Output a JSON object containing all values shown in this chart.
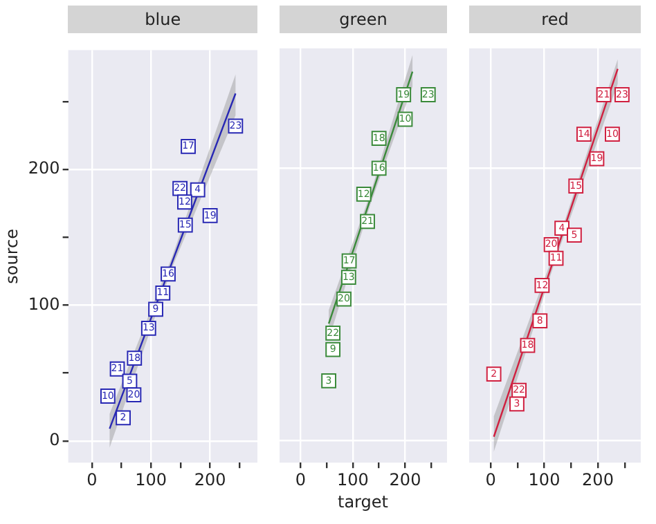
{
  "chart_data": [
    {
      "type": "scatter",
      "title": "blue",
      "ylabel": "source",
      "xlim": [
        -40,
        280
      ],
      "ylim": [
        -16,
        288
      ],
      "xticks": [
        0,
        {
          "value": 50,
          "label": null
        },
        100,
        {
          "value": 150,
          "label": null
        },
        200,
        {
          "value": 250,
          "label": null
        }
      ],
      "yticks": [
        0,
        {
          "value": 50,
          "label": null
        },
        100,
        {
          "value": 150,
          "label": null
        },
        200,
        {
          "value": 250,
          "label": null
        }
      ],
      "grid": true,
      "legend": false,
      "series": [
        {
          "color": "#2828b4",
          "x": [
            243,
            163,
            149,
            179,
            157,
            200,
            158,
            129,
            120,
            108,
            96,
            43,
            72,
            64,
            27,
            71,
            53
          ],
          "values": [
            232,
            217,
            186,
            185,
            176,
            166,
            159,
            123,
            109,
            97,
            83,
            53,
            61,
            44,
            33,
            34,
            17
          ]
        },
        {
          "type": "line",
          "color": "#2828b4",
          "x": [
            30,
            136,
            243
          ],
          "values": [
            9,
            132,
            256
          ],
          "lower": [
            -5,
            128,
            240
          ],
          "upper": [
            20,
            136,
            270
          ]
        }
      ],
      "annotations": [
        {
          "text": "23",
          "x": 243,
          "y": 232
        },
        {
          "text": "17",
          "x": 163,
          "y": 217
        },
        {
          "text": "22",
          "x": 149,
          "y": 186
        },
        {
          "text": "4",
          "x": 179,
          "y": 185
        },
        {
          "text": "12",
          "x": 157,
          "y": 176
        },
        {
          "text": "19",
          "x": 200,
          "y": 166
        },
        {
          "text": "15",
          "x": 158,
          "y": 159
        },
        {
          "text": "16",
          "x": 129,
          "y": 123
        },
        {
          "text": "11",
          "x": 120,
          "y": 109
        },
        {
          "text": "9",
          "x": 108,
          "y": 97
        },
        {
          "text": "13",
          "x": 96,
          "y": 83
        },
        {
          "text": "21",
          "x": 43,
          "y": 53
        },
        {
          "text": "18",
          "x": 72,
          "y": 61
        },
        {
          "text": "5",
          "x": 64,
          "y": 44
        },
        {
          "text": "10",
          "x": 27,
          "y": 33
        },
        {
          "text": "20",
          "x": 71,
          "y": 34
        },
        {
          "text": "2",
          "x": 53,
          "y": 17
        }
      ]
    },
    {
      "type": "scatter",
      "title": "green",
      "xlabel": "target",
      "tick_labels": "x",
      "xlim": [
        -40,
        280
      ],
      "ylim": [
        -16,
        288
      ],
      "xticks": [
        0,
        {
          "value": 50,
          "label": null
        },
        100,
        {
          "value": 150,
          "label": null
        },
        200,
        {
          "value": 250,
          "label": null
        }
      ],
      "yticks": [
        0,
        100,
        200
      ],
      "grid": true,
      "legend": false,
      "series": [
        {
          "color": "#3a8a3a",
          "x": [
            197,
            244,
            200,
            150,
            150,
            121,
            128,
            93,
            92,
            83,
            62,
            62,
            54
          ],
          "values": [
            254,
            254,
            236,
            222,
            200,
            181,
            161,
            132,
            120,
            104,
            79,
            67,
            44
          ]
        },
        {
          "type": "line",
          "color": "#3a8a3a",
          "x": [
            54,
            134,
            214
          ],
          "values": [
            86,
            178,
            271
          ],
          "lower": [
            74,
            174,
            260
          ],
          "upper": [
            96,
            182,
            283
          ]
        }
      ],
      "annotations": [
        {
          "text": "19",
          "x": 197,
          "y": 254
        },
        {
          "text": "23",
          "x": 244,
          "y": 254
        },
        {
          "text": "10",
          "x": 200,
          "y": 236
        },
        {
          "text": "18",
          "x": 150,
          "y": 222
        },
        {
          "text": "16",
          "x": 150,
          "y": 200
        },
        {
          "text": "12",
          "x": 121,
          "y": 181
        },
        {
          "text": "21",
          "x": 128,
          "y": 161
        },
        {
          "text": "17",
          "x": 93,
          "y": 132
        },
        {
          "text": "13",
          "x": 92,
          "y": 120
        },
        {
          "text": "20",
          "x": 83,
          "y": 104
        },
        {
          "text": "22",
          "x": 62,
          "y": 79
        },
        {
          "text": "9",
          "x": 62,
          "y": 67
        },
        {
          "text": "3",
          "x": 54,
          "y": 44
        }
      ]
    },
    {
      "type": "scatter",
      "title": "red",
      "tick_labels": "x",
      "xlim": [
        -40,
        280
      ],
      "ylim": [
        -16,
        288
      ],
      "xticks": [
        0,
        {
          "value": 50,
          "label": null
        },
        100,
        {
          "value": 150,
          "label": null
        },
        200,
        {
          "value": 250,
          "label": null
        }
      ],
      "yticks": [
        0,
        100,
        200
      ],
      "grid": true,
      "legend": false,
      "series": [
        {
          "color": "#d02040",
          "x": [
            211,
            245,
            174,
            227,
            198,
            159,
            133,
            156,
            113,
            122,
            96,
            92,
            69,
            6,
            53,
            49
          ],
          "values": [
            254,
            254,
            225,
            225,
            207,
            187,
            156,
            151,
            144,
            134,
            114,
            88,
            70,
            49,
            37,
            27
          ]
        },
        {
          "type": "line",
          "color": "#d02040",
          "x": [
            6,
            122,
            237
          ],
          "values": [
            3,
            138,
            273
          ],
          "lower": [
            -8,
            134,
            262
          ],
          "upper": [
            18,
            142,
            280
          ]
        }
      ],
      "annotations": [
        {
          "text": "21",
          "x": 211,
          "y": 254
        },
        {
          "text": "23",
          "x": 245,
          "y": 254
        },
        {
          "text": "14",
          "x": 174,
          "y": 225
        },
        {
          "text": "10",
          "x": 227,
          "y": 225
        },
        {
          "text": "19",
          "x": 198,
          "y": 207
        },
        {
          "text": "15",
          "x": 159,
          "y": 187
        },
        {
          "text": "4",
          "x": 133,
          "y": 156
        },
        {
          "text": "5",
          "x": 156,
          "y": 151
        },
        {
          "text": "20",
          "x": 113,
          "y": 144
        },
        {
          "text": "11",
          "x": 122,
          "y": 134
        },
        {
          "text": "12",
          "x": 96,
          "y": 114
        },
        {
          "text": "8",
          "x": 92,
          "y": 88
        },
        {
          "text": "18",
          "x": 69,
          "y": 70
        },
        {
          "text": "2",
          "x": 6,
          "y": 49
        },
        {
          "text": "22",
          "x": 53,
          "y": 37
        },
        {
          "text": "3",
          "x": 49,
          "y": 27
        }
      ]
    }
  ]
}
